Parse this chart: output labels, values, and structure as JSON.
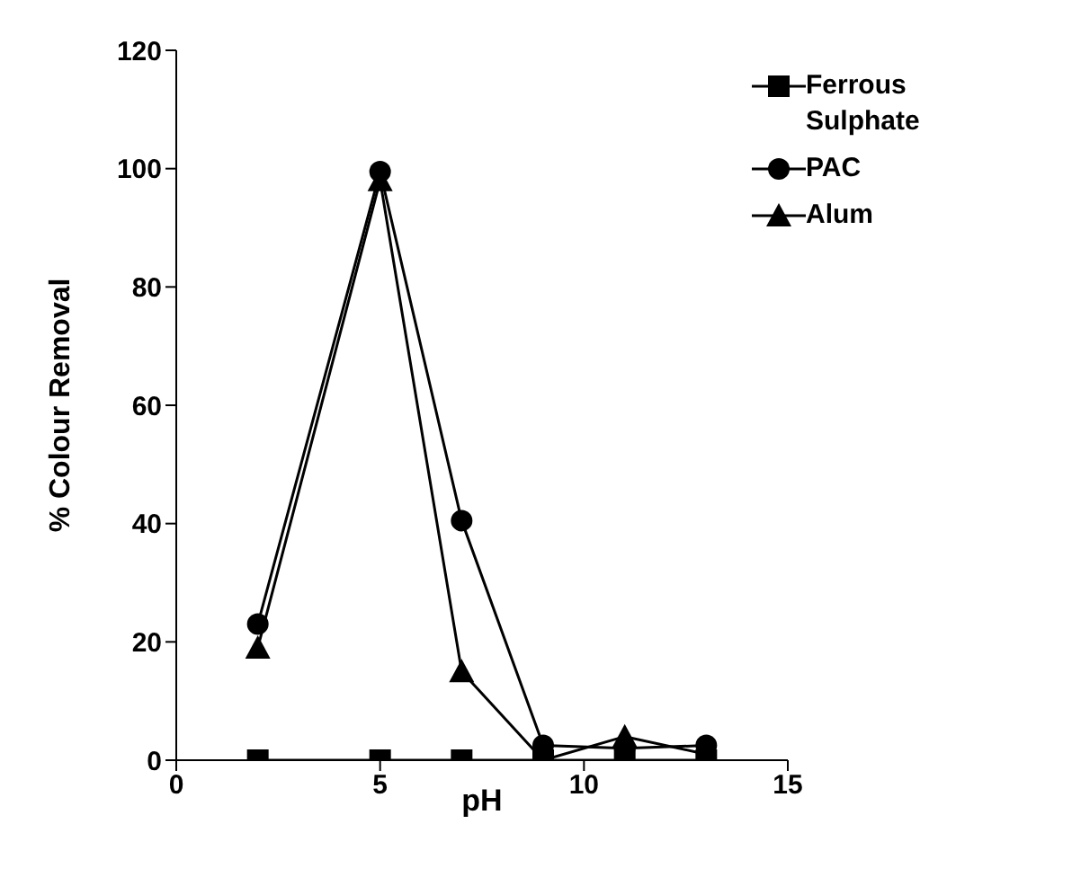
{
  "chart_data": {
    "type": "line",
    "xlabel": "pH",
    "ylabel": "% Colour Removal",
    "x": [
      2,
      5,
      7,
      9,
      11,
      13
    ],
    "xlim": [
      0,
      15
    ],
    "xticks": [
      0,
      5,
      10,
      15
    ],
    "ylim": [
      0,
      120
    ],
    "yticks": [
      0,
      20,
      40,
      60,
      80,
      100,
      120
    ],
    "legend": "top right",
    "line_style": "solid",
    "series": [
      {
        "name": "Ferrous Sulphate",
        "color": "#000000",
        "marker": "square",
        "values": [
          0,
          0,
          0,
          0,
          0,
          0
        ]
      },
      {
        "name": "PAC",
        "color": "#000000",
        "marker": "circle",
        "values": [
          23,
          99.5,
          40.5,
          2.5,
          2,
          2.5
        ]
      },
      {
        "name": "Alum",
        "color": "#000000",
        "marker": "triangle",
        "values": [
          19,
          98,
          15,
          0,
          4,
          1
        ]
      }
    ]
  }
}
